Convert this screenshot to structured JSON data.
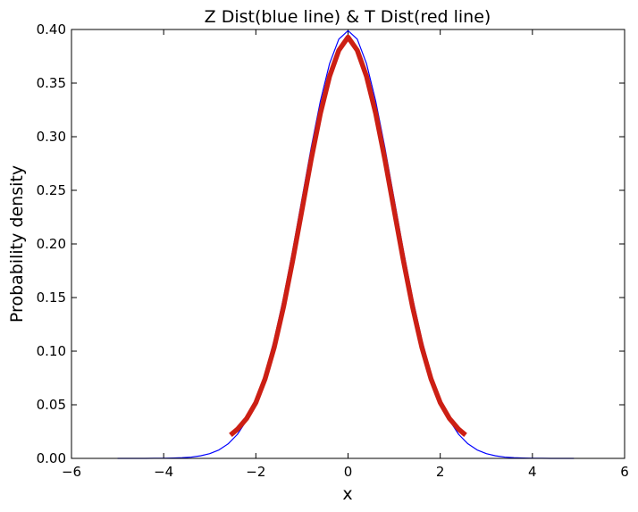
{
  "chart_data": {
    "type": "line",
    "title": "Z Dist(blue line) & T Dist(red line)",
    "xlabel": "x",
    "ylabel": "Probability density",
    "xlim": [
      -6,
      6
    ],
    "ylim": [
      0,
      0.4
    ],
    "xticks": [
      -6,
      -4,
      -2,
      0,
      2,
      4,
      6
    ],
    "xtick_labels": [
      "−6",
      "−4",
      "−2",
      "0",
      "2",
      "4",
      "6"
    ],
    "yticks": [
      0,
      0.05,
      0.1,
      0.15,
      0.2,
      0.25,
      0.3,
      0.35,
      0.4
    ],
    "ytick_labels": [
      "0.00",
      "0.05",
      "0.10",
      "0.15",
      "0.20",
      "0.25",
      "0.30",
      "0.35",
      "0.40"
    ],
    "grid": false,
    "series": [
      {
        "color": "#0000ff",
        "x": [
          -5.0,
          -4.8,
          -4.6,
          -4.4,
          -4.2,
          -4.0,
          -3.8,
          -3.6,
          -3.4,
          -3.2,
          -3.0,
          -2.8,
          -2.6,
          -2.4,
          -2.2,
          -2.0,
          -1.8,
          -1.6,
          -1.4,
          -1.2,
          -1.0,
          -0.8,
          -0.6,
          -0.4,
          -0.2,
          0.0,
          0.2,
          0.4,
          0.6,
          0.8,
          1.0,
          1.2,
          1.4,
          1.6,
          1.8,
          2.0,
          2.2,
          2.4,
          2.6,
          2.8,
          3.0,
          3.2,
          3.4,
          3.6,
          3.8,
          4.0,
          4.2,
          4.4,
          4.6,
          4.8,
          4.9
        ],
        "y": [
          0.0,
          0.0,
          0.0,
          0.0,
          0.0001,
          0.0001,
          0.0003,
          0.0006,
          0.0012,
          0.0024,
          0.0044,
          0.0079,
          0.0136,
          0.0224,
          0.0355,
          0.054,
          0.079,
          0.1109,
          0.1497,
          0.1942,
          0.242,
          0.2897,
          0.3332,
          0.3683,
          0.391,
          0.3989,
          0.391,
          0.3683,
          0.3332,
          0.2897,
          0.242,
          0.1942,
          0.1497,
          0.1109,
          0.079,
          0.054,
          0.0355,
          0.0224,
          0.0136,
          0.0079,
          0.0044,
          0.0024,
          0.0012,
          0.0006,
          0.0003,
          0.0001,
          0.0001,
          0.0,
          0.0,
          0.0,
          0.0
        ],
        "line_width": 1.2
      },
      {
        "color": "#cc1f14",
        "x": [
          -2.55,
          -2.4,
          -2.2,
          -2.0,
          -1.8,
          -1.6,
          -1.4,
          -1.2,
          -1.0,
          -0.8,
          -0.6,
          -0.4,
          -0.2,
          0.0,
          0.2,
          0.4,
          0.6,
          0.8,
          1.0,
          1.2,
          1.4,
          1.6,
          1.8,
          2.0,
          2.2,
          2.4,
          2.55
        ],
        "y": [
          0.0218,
          0.0272,
          0.0372,
          0.052,
          0.0742,
          0.1038,
          0.1412,
          0.1847,
          0.2316,
          0.2787,
          0.3217,
          0.3564,
          0.3806,
          0.3928,
          0.3806,
          0.3564,
          0.3217,
          0.2787,
          0.2316,
          0.1847,
          0.1412,
          0.1038,
          0.0742,
          0.052,
          0.0372,
          0.0272,
          0.0218
        ],
        "line_width": 5.5
      }
    ]
  }
}
